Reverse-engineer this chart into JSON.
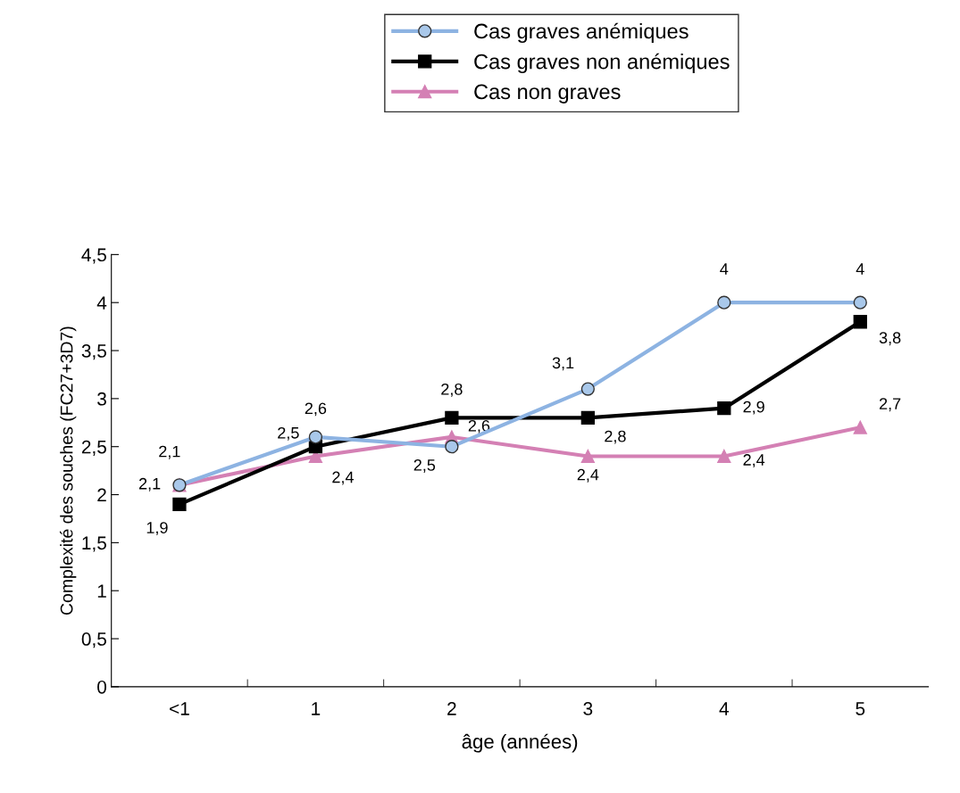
{
  "chart_data": {
    "type": "line",
    "xlabel": "âge (années)",
    "ylabel": "Complexité des souches (FC27+3D7)",
    "categories": [
      "<1",
      "1",
      "2",
      "3",
      "4",
      "5"
    ],
    "series": [
      {
        "name": "Cas graves anémiques",
        "color": "#8db3e2",
        "marker": "circle",
        "values": [
          2.1,
          2.6,
          2.5,
          3.1,
          4,
          4
        ],
        "value_labels": [
          "2,1",
          "2,6",
          "2,5",
          "3,1",
          "4",
          "4"
        ]
      },
      {
        "name": "Cas graves non anémiques",
        "color": "#000000",
        "marker": "square",
        "values": [
          1.9,
          2.5,
          2.8,
          2.8,
          2.9,
          3.8
        ],
        "value_labels": [
          "1,9",
          "2,5",
          "2,8",
          "2,8",
          "2,9",
          "3,8"
        ]
      },
      {
        "name": "Cas non graves",
        "color": "#d480b4",
        "marker": "triangle",
        "values": [
          2.1,
          2.4,
          2.6,
          2.4,
          2.4,
          2.7
        ],
        "value_labels": [
          "2,1",
          "2,4",
          "2,6",
          "2,4",
          "2,4",
          "2,7"
        ]
      }
    ],
    "ylim": [
      0,
      4.5
    ],
    "yticks": [
      0,
      {
        "value": 0.5,
        "label": "0,5"
      },
      1,
      {
        "value": 1.5,
        "label": "1,5"
      },
      2,
      {
        "value": 2.5,
        "label": "2,5"
      },
      3,
      {
        "value": 3.5,
        "label": "3,5"
      },
      4,
      {
        "value": 4.5,
        "label": "4,5"
      }
    ],
    "grid": false,
    "legend": "top",
    "line_style": "solid"
  }
}
